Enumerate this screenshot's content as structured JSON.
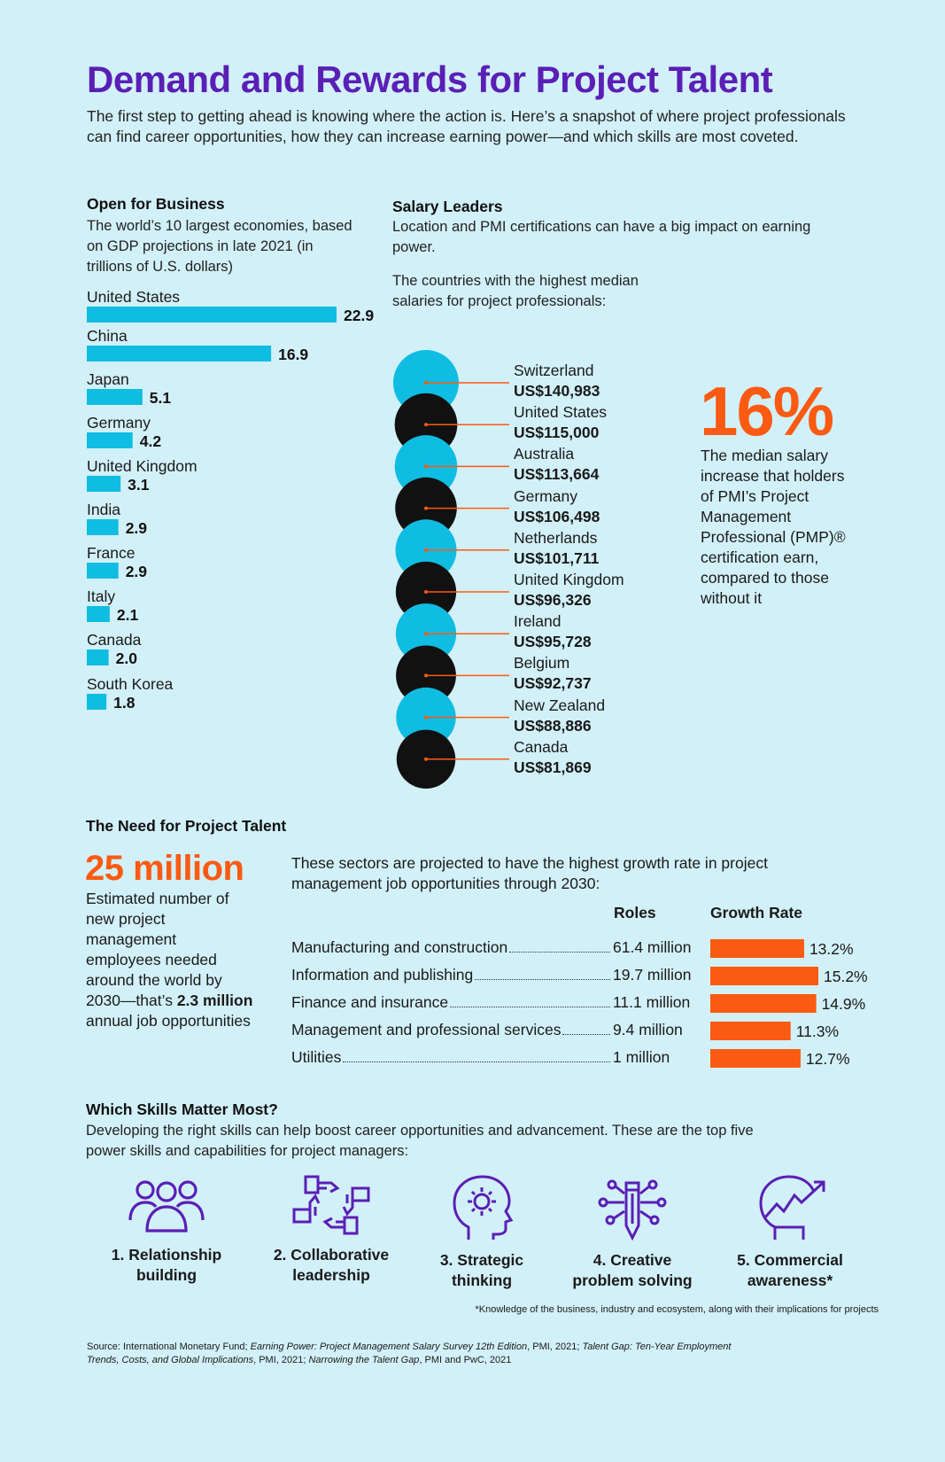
{
  "title": "Demand and Rewards for Project Talent",
  "intro": "The first step to getting ahead is knowing where the action is. Here’s a snapshot of where project professionals can find career opportunities, how they can increase earning power—and which skills are most coveted.",
  "colors": {
    "title": "#5a1fb5",
    "accent_orange": "#fb5a12",
    "accent_blue": "#0fbde2",
    "dark": "#111111",
    "background": "#d2f0f8"
  },
  "gdp": {
    "heading": "Open for Business",
    "subtitle": "The world’s 10 largest economies, based on GDP projections in late 2021 (in trillions of U.S. dollars)"
  },
  "salary": {
    "heading": "Salary Leaders",
    "subtitle": "Location and PMI certifications can have a big impact on earning power.",
    "subtitle2": "The countries with the highest median salaries for project professionals:",
    "countries": [
      {
        "country": "Switzerland",
        "value": "US$140,983"
      },
      {
        "country": "United States",
        "value": "US$115,000"
      },
      {
        "country": "Australia",
        "value": "US$113,664"
      },
      {
        "country": "Germany",
        "value": "US$106,498"
      },
      {
        "country": "Netherlands",
        "value": "US$101,711"
      },
      {
        "country": "United Kingdom",
        "value": "US$96,326"
      },
      {
        "country": "Ireland",
        "value": "US$95,728"
      },
      {
        "country": "Belgium",
        "value": "US$92,737"
      },
      {
        "country": "New Zealand",
        "value": "US$88,886"
      },
      {
        "country": "Canada",
        "value": "US$81,869"
      }
    ],
    "pmp_pct": "16%",
    "pmp_desc": "The median salary increase that holders of PMI’s Project Management Professional (PMP)® certification earn, compared to those without it"
  },
  "need": {
    "heading": "The Need for Project Talent",
    "big": "25 million",
    "desc_a": "Estimated number of new project management employees needed around the world by 2030—that’s ",
    "desc_b": "2.3 million",
    "desc_c": " annual job opportunities",
    "sector_intro": "These sectors are projected to have the highest growth rate in project management job opportunities through 2030:",
    "roles_header": "Roles",
    "growth_header": "Growth Rate",
    "sectors": [
      {
        "name": "Manufacturing and construction",
        "roles": "61.4 million",
        "growth": "13.2%"
      },
      {
        "name": "Information and publishing",
        "roles": "19.7 million",
        "growth": "15.2%"
      },
      {
        "name": "Finance and insurance",
        "roles": "11.1 million",
        "growth": "14.9%"
      },
      {
        "name": "Management and professional services",
        "roles": "9.4 million",
        "growth": "11.3%"
      },
      {
        "name": "Utilities",
        "roles": "1 million",
        "growth": "12.7%"
      }
    ]
  },
  "skills": {
    "heading": "Which Skills Matter Most?",
    "subtitle": "Developing the right skills can help boost career opportunities and advancement. These are the top five power skills and capabilities for project managers:",
    "items": [
      {
        "line1": "1. Relationship",
        "line2": "building",
        "icon": "people-icon"
      },
      {
        "line1": "2. Collaborative",
        "line2": "leadership",
        "icon": "hands-icon"
      },
      {
        "line1": "3. Strategic",
        "line2": "thinking",
        "icon": "head-gear-icon"
      },
      {
        "line1": "4. Creative",
        "line2": "problem solving",
        "icon": "pencil-network-icon"
      },
      {
        "line1": "5. Commercial",
        "line2": "awareness*",
        "icon": "head-growth-icon"
      }
    ],
    "footnote": "*Knowledge of the business, industry and ecosystem, along with their implications for projects"
  },
  "source": {
    "a": "Source: International Monetary Fund; ",
    "b": "Earning Power: Project Management Salary Survey 12th Edition",
    "c": ", PMI, 2021; ",
    "d": "Talent Gap: Ten-Year Employment Trends, Costs, and Global Implications",
    "e": ", PMI, 2021; ",
    "f": "Narrowing the Talent Gap",
    "g": ", PMI and PwC, 2021"
  },
  "chart_data": [
    {
      "type": "bar",
      "orientation": "horizontal",
      "title": "Open for Business",
      "categories": [
        "United States",
        "China",
        "Japan",
        "Germany",
        "United Kingdom",
        "India",
        "France",
        "Italy",
        "Canada",
        "South Korea"
      ],
      "values": [
        22.9,
        16.9,
        5.1,
        4.2,
        3.1,
        2.9,
        2.9,
        2.1,
        2.0,
        1.8
      ],
      "data_labels": [
        "22.9",
        "16.9",
        "5.1",
        "4.2",
        "3.1",
        "2.9",
        "2.9",
        "2.1",
        "2.0",
        "1.8"
      ],
      "unit": "trillions of U.S. dollars",
      "color": "#0fbde2"
    },
    {
      "type": "bar",
      "orientation": "horizontal",
      "title": "Growth Rate",
      "categories": [
        "Manufacturing and construction",
        "Information and publishing",
        "Finance and insurance",
        "Management and professional services",
        "Utilities"
      ],
      "values": [
        13.2,
        15.2,
        14.9,
        11.3,
        12.7
      ],
      "data_labels": [
        "13.2%",
        "15.2%",
        "14.9%",
        "11.3%",
        "12.7%"
      ],
      "unit": "%",
      "color": "#fb5a12"
    },
    {
      "type": "scatter",
      "title": "Salary Leaders",
      "categories": [
        "Switzerland",
        "United States",
        "Australia",
        "Germany",
        "Netherlands",
        "United Kingdom",
        "Ireland",
        "Belgium",
        "New Zealand",
        "Canada"
      ],
      "values": [
        140983,
        115000,
        113664,
        106498,
        101711,
        96326,
        95728,
        92737,
        88886,
        81869
      ],
      "unit": "US$",
      "colors": [
        "#0fbde2",
        "#111111"
      ]
    }
  ]
}
